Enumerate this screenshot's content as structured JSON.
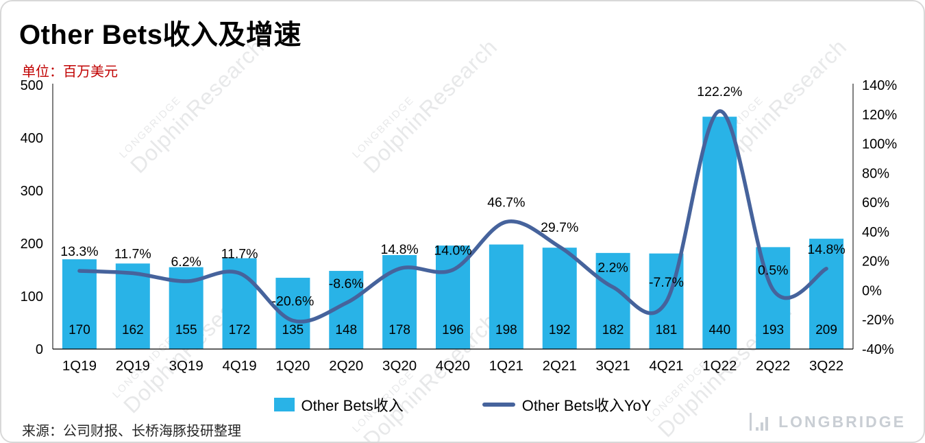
{
  "title": "Other Bets收入及增速",
  "subtitle": "单位：百万美元",
  "source": "来源：公司财报、长桥海豚投研整理",
  "watermark": {
    "line1": "LONGBRIDGE",
    "line2": "DolphinResearch"
  },
  "logo": {
    "text": "LONGBRIDGE"
  },
  "legend": {
    "bars": "Other Bets收入",
    "line": "Other Bets收入YoY"
  },
  "colors": {
    "bar": "#29b3e7",
    "line": "#46639c",
    "subtitle": "#c00000",
    "logo": "#c9ced4"
  },
  "chart_data": {
    "type": "bar+line",
    "title": "Other Bets收入及增速",
    "unit": "百万美元",
    "categories": [
      "1Q19",
      "2Q19",
      "3Q19",
      "4Q19",
      "1Q20",
      "2Q20",
      "3Q20",
      "4Q20",
      "1Q21",
      "2Q21",
      "3Q21",
      "4Q21",
      "1Q22",
      "2Q22",
      "3Q22"
    ],
    "series": [
      {
        "name": "Other Bets收入",
        "type": "bar",
        "axis": "left",
        "values": [
          170,
          162,
          155,
          172,
          135,
          148,
          178,
          196,
          198,
          192,
          182,
          181,
          440,
          193,
          209
        ]
      },
      {
        "name": "Other Bets收入YoY",
        "type": "line",
        "axis": "right",
        "values_pct": [
          13.3,
          11.7,
          6.2,
          11.7,
          -20.6,
          -8.6,
          14.8,
          14.0,
          46.7,
          29.7,
          2.2,
          -7.7,
          122.2,
          0.5,
          14.8
        ],
        "labels": [
          "13.3%",
          "11.7%",
          "6.2%",
          "11.7%",
          "-20.6%",
          "-8.6%",
          "14.8%",
          "14.0%",
          "46.7%",
          "29.7%",
          "2.2%",
          "-7.7%",
          "122.2%",
          "0.5%",
          "14.8%"
        ]
      }
    ],
    "left_axis": {
      "min": 0,
      "max": 500,
      "ticks": [
        500,
        400,
        300,
        200,
        100,
        0
      ]
    },
    "right_axis": {
      "min": -40,
      "max": 140,
      "ticks": [
        "140%",
        "120%",
        "100%",
        "80%",
        "60%",
        "40%",
        "20%",
        "0%",
        "-20%",
        "-40%"
      ],
      "tick_values": [
        140,
        120,
        100,
        80,
        60,
        40,
        20,
        0,
        -20,
        -40
      ]
    },
    "grid": false,
    "legend_position": "bottom"
  }
}
